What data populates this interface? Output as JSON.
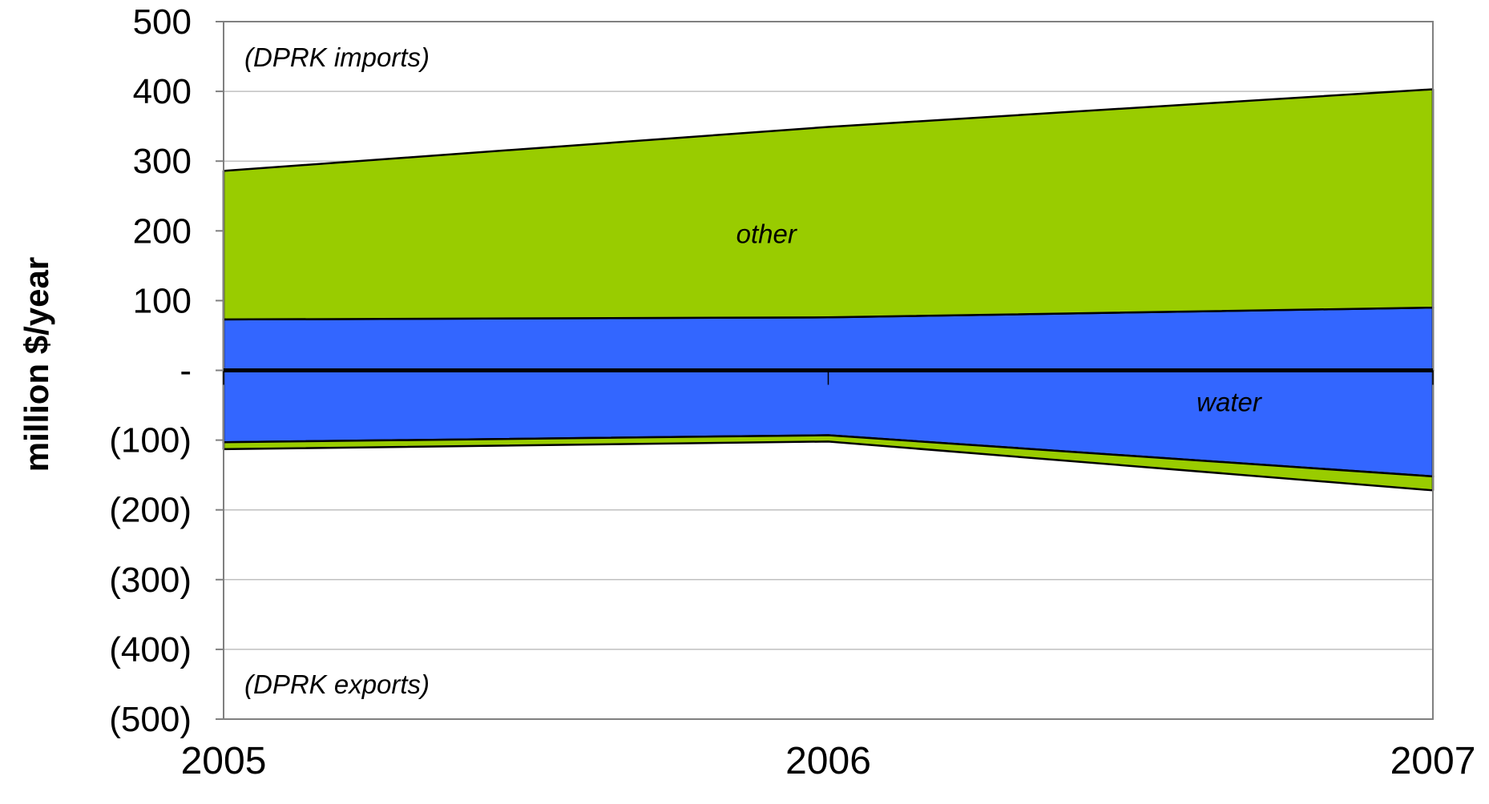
{
  "chart_data": {
    "type": "area",
    "xlabel": "",
    "ylabel": "million $/year",
    "categories": [
      "2005",
      "2006",
      "2007"
    ],
    "ylim": [
      -500,
      500
    ],
    "y_ticks": [
      500,
      400,
      300,
      200,
      100,
      0,
      -100,
      -200,
      -300,
      -400,
      -500
    ],
    "y_tick_labels": [
      "500",
      "400",
      "300",
      "200",
      "100",
      "-",
      "(100)",
      "(200)",
      "(300)",
      "(400)",
      "(500)"
    ],
    "grid": "horizontal",
    "series": [
      {
        "name": "water",
        "color": "#3366FF",
        "imports": [
          73,
          76,
          90
        ],
        "exports": [
          -103,
          -93,
          -152
        ]
      },
      {
        "name": "other",
        "color": "#99CC00",
        "imports": [
          213,
          273,
          313
        ],
        "exports": [
          -10,
          -9,
          -20
        ]
      }
    ],
    "annotations": [
      {
        "text": "(DPRK imports)"
      },
      {
        "text": "(DPRK exports)"
      }
    ],
    "zero_line_color": "#000000",
    "plot_border_color": "#808080",
    "grid_color": "#c0c0c0"
  }
}
